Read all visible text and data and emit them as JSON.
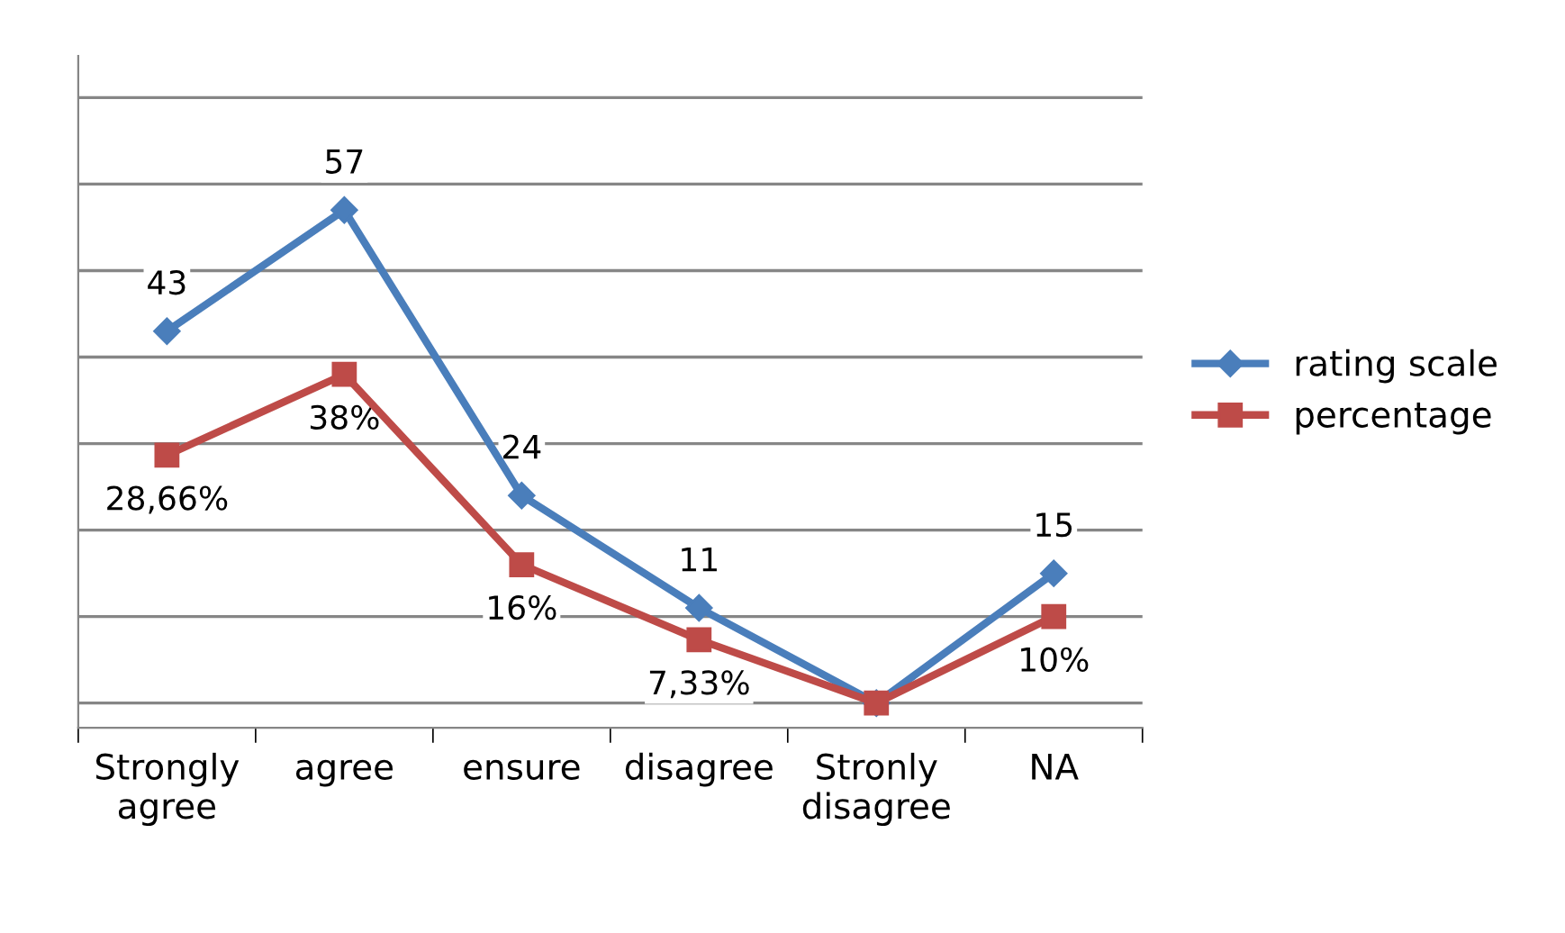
{
  "chart_data": {
    "type": "line",
    "categories": [
      "Strongly\nagree",
      "agree",
      "ensure",
      "disagree",
      "Stronly\ndisagree",
      "NA"
    ],
    "series": [
      {
        "name": "rating scale",
        "color": "#4a7ebb",
        "marker": "diamond",
        "values": [
          43,
          57,
          24,
          11,
          0,
          15
        ],
        "value_labels": [
          "43",
          "57",
          "24",
          "11",
          null,
          "15"
        ]
      },
      {
        "name": "percentage",
        "color": "#be4b48",
        "marker": "square",
        "values": [
          28.66,
          38,
          16,
          7.33,
          0,
          10
        ],
        "value_labels": [
          "28,66%",
          "38%",
          "16%",
          "7,33%",
          null,
          "10%"
        ]
      }
    ],
    "grid": "y",
    "legend": "right",
    "tick_labels": "x",
    "line_style": "solid"
  }
}
